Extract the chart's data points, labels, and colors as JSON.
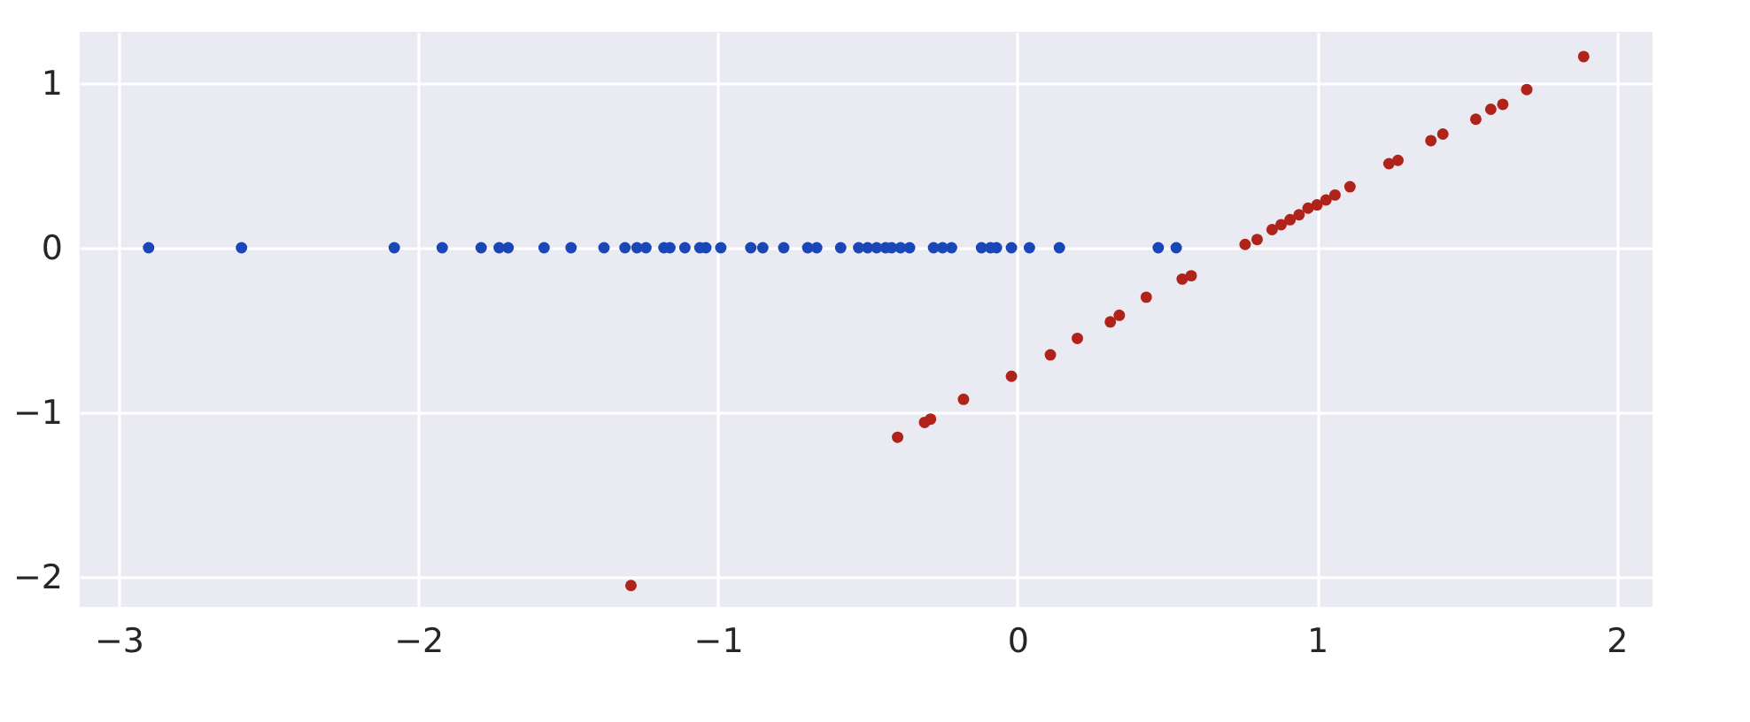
{
  "chart_data": {
    "type": "scatter",
    "xlim": [
      -3.13,
      2.12
    ],
    "ylim": [
      -2.18,
      1.31
    ],
    "xticks": [
      -3,
      -2,
      -1,
      0,
      1,
      2
    ],
    "yticks": [
      -2,
      -1,
      0,
      1
    ],
    "grid": true,
    "marker": "circle",
    "series": [
      {
        "color": "#1a47b8",
        "x": [
          -2.9,
          -2.59,
          -2.08,
          -1.92,
          -1.79,
          -1.73,
          -1.7,
          -1.58,
          -1.49,
          -1.38,
          -1.31,
          -1.27,
          -1.24,
          -1.18,
          -1.16,
          -1.11,
          -1.06,
          -1.04,
          -0.99,
          -0.89,
          -0.85,
          -0.78,
          -0.7,
          -0.67,
          -0.59,
          -0.53,
          -0.5,
          -0.47,
          -0.44,
          -0.42,
          -0.39,
          -0.36,
          -0.28,
          -0.25,
          -0.22,
          -0.12,
          -0.09,
          -0.07,
          -0.02,
          0.04,
          0.14,
          0.47,
          0.53
        ],
        "values": [
          0,
          0,
          0,
          0,
          0,
          0,
          0,
          0,
          0,
          0,
          0,
          0,
          0,
          0,
          0,
          0,
          0,
          0,
          0,
          0,
          0,
          0,
          0,
          0,
          0,
          0,
          0,
          0,
          0,
          0,
          0,
          0,
          0,
          0,
          0,
          0,
          0,
          0,
          0,
          0,
          0,
          0,
          0
        ]
      },
      {
        "color": "#b0231a",
        "x": [
          -1.29,
          -0.4,
          -0.31,
          -0.29,
          -0.18,
          -0.02,
          0.11,
          0.2,
          0.31,
          0.34,
          0.43,
          0.55,
          0.58,
          0.76,
          0.8,
          0.85,
          0.88,
          0.91,
          0.94,
          0.97,
          1.0,
          1.03,
          1.06,
          1.11,
          1.24,
          1.27,
          1.38,
          1.42,
          1.53,
          1.58,
          1.62,
          1.7,
          1.89
        ],
        "values": [
          -2.05,
          -1.15,
          -1.06,
          -1.04,
          -0.92,
          -0.78,
          -0.65,
          -0.55,
          -0.45,
          -0.41,
          -0.3,
          -0.19,
          -0.17,
          0.02,
          0.05,
          0.11,
          0.14,
          0.17,
          0.2,
          0.24,
          0.26,
          0.29,
          0.32,
          0.37,
          0.51,
          0.53,
          0.65,
          0.69,
          0.78,
          0.84,
          0.87,
          0.96,
          1.16
        ]
      }
    ]
  }
}
